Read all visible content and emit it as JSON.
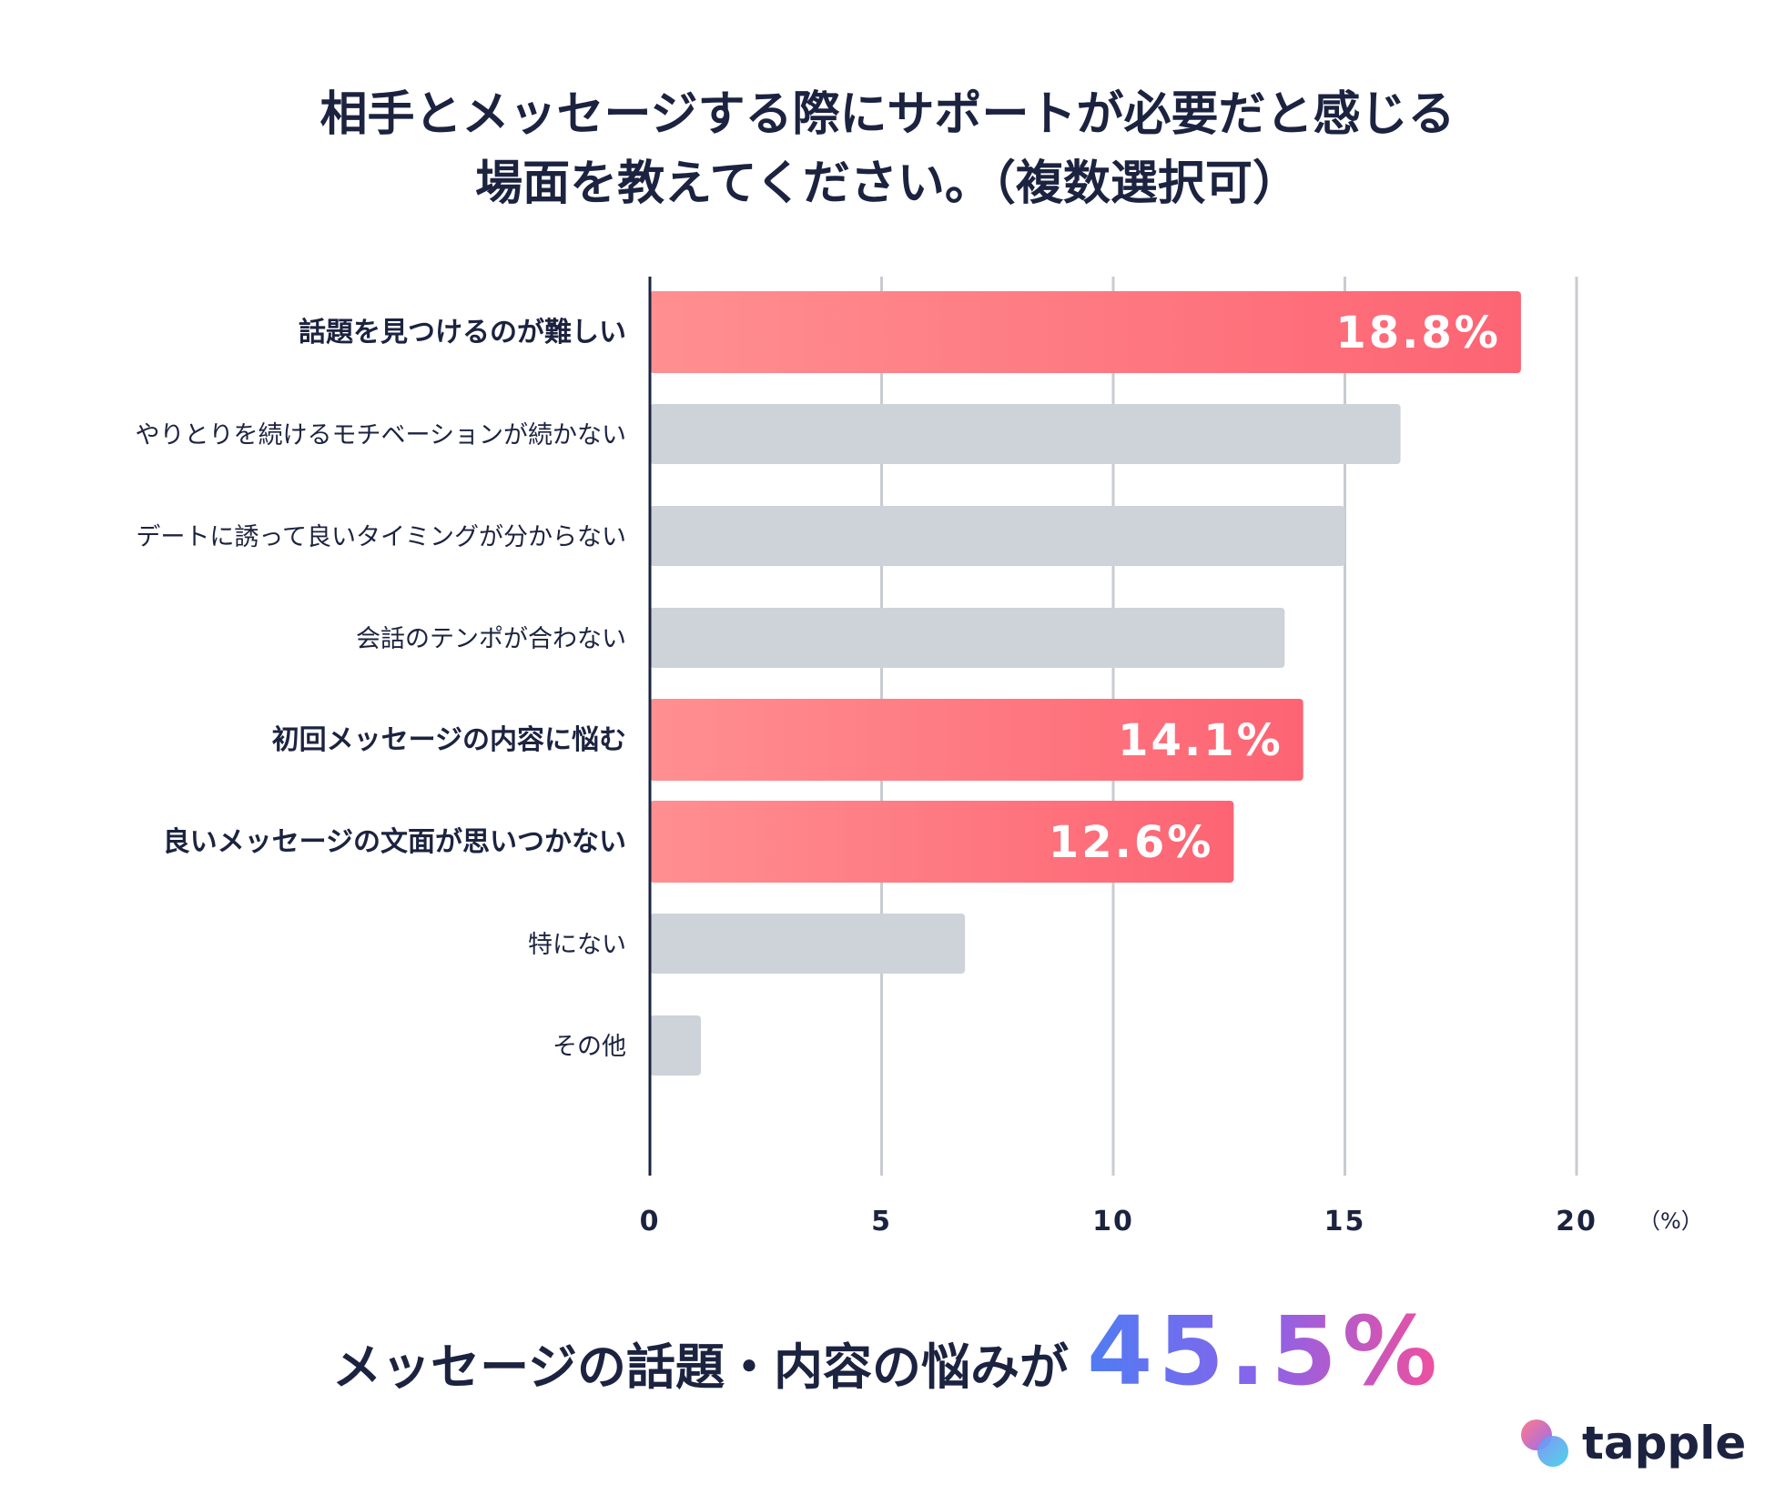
{
  "title_lines": [
    "相手とメッセージする際にサポートが必要だと感じる",
    "場面を教えてください。（複数選択可）"
  ],
  "chart_data": {
    "type": "bar",
    "orientation": "horizontal",
    "categories": [
      "話題を見つけるのが難しい",
      "やりとりを続けるモチベーションが続かない",
      "デートに誘って良いタイミングが分からない",
      "会話のテンポが合わない",
      "初回メッセージの内容に悩む",
      "良いメッセージの文面が思いつかない",
      "特にない",
      "その他"
    ],
    "values": [
      18.8,
      16.2,
      15.0,
      13.7,
      14.1,
      12.6,
      6.8,
      1.1
    ],
    "highlighted": [
      true,
      false,
      false,
      false,
      true,
      true,
      false,
      false
    ],
    "data_labels": [
      "18.8%",
      "",
      "",
      "",
      "14.1%",
      "12.6%",
      "",
      ""
    ],
    "x_ticks": [
      "0",
      "5",
      "10",
      "15",
      "20"
    ],
    "x_unit": "（%）",
    "xlim": [
      0,
      20
    ],
    "grid": true,
    "colors": {
      "highlight_start": "#ff8f91",
      "highlight_end": "#fd6473",
      "normal": "#ced2d9",
      "grid": "#c8cbd0",
      "axis": "#1c2340",
      "text": "#1c2340",
      "label_on_bar": "#ffffff"
    }
  },
  "summary": {
    "text": "メッセージの話題・内容の悩みが",
    "value": "45.5%"
  },
  "brand": {
    "name": "tapple",
    "logo_colors": [
      "#ff7a8a",
      "#9b6cf0",
      "#3fd0e6"
    ]
  }
}
